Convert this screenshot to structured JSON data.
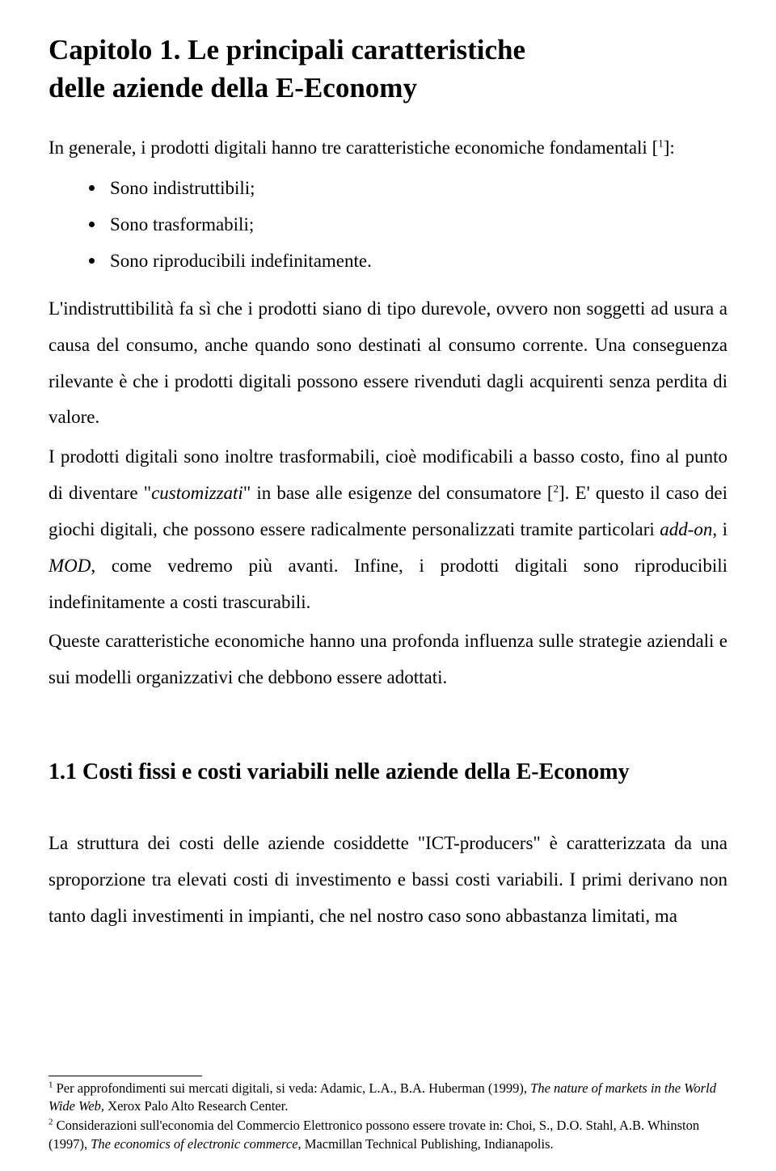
{
  "doc": {
    "title_line1": "Capitolo 1. Le principali caratteristiche",
    "title_line2": "delle aziende della E-Economy",
    "intro_before_ref": "In generale, i prodotti digitali hanno tre caratteristiche economiche fondamentali [",
    "intro_ref": "1",
    "intro_after_ref": "]:",
    "bullets": {
      "b1": "Sono indistruttibili;",
      "b2": "Sono trasformabili;",
      "b3": "Sono riproducibili indefinitamente."
    },
    "para1": "L'indistruttibilità fa sì che i prodotti siano di tipo durevole, ovvero non soggetti ad usura a causa del consumo, anche quando sono destinati al consumo corrente. Una conseguenza rilevante è che i prodotti digitali possono essere rivenduti dagli acquirenti senza perdita di valore.",
    "para2_a": "I prodotti digitali sono inoltre trasformabili, cioè modificabili a basso costo, fino al punto di diventare \"",
    "para2_em1": "customizzati",
    "para2_b": "\" in base alle esigenze del consumatore [",
    "para2_ref": "2",
    "para2_c": "]. E' questo il caso dei giochi digitali, che possono essere radicalmente personalizzati tramite particolari ",
    "para2_em2": "add-on",
    "para2_d": ", i ",
    "para2_em3": "MOD",
    "para2_e": ", come vedremo più avanti. Infine, i prodotti digitali sono riproducibili indefinitamente a costi trascurabili.",
    "para3": "Queste caratteristiche economiche hanno una profonda influenza sulle strategie aziendali e sui modelli organizzativi che debbono essere adottati.",
    "section_title": "1.1 Costi fissi e costi variabili nelle aziende della E-Economy",
    "para4": "La struttura dei costi delle aziende cosiddette \"ICT-producers\" è caratterizzata da una sproporzione tra elevati costi di investimento e bassi costi variabili. I primi derivano non tanto dagli investimenti in impianti, che nel nostro caso sono abbastanza limitati, ma",
    "footnotes": {
      "f1_sup": "1",
      "f1_a": " Per approfondimenti sui mercati digitali, si veda: Adamic, L.A., B.A. Huberman (1999), ",
      "f1_em": "The nature of markets in the World Wide Web",
      "f1_b": ", Xerox Palo Alto Research Center.",
      "f2_sup": "2",
      "f2_a": " Considerazioni sull'economia del Commercio Elettronico possono essere trovate in: Choi, S., D.O. Stahl, A.B. Whinston (1997), ",
      "f2_em": "The economics of electronic commerce",
      "f2_b": ", Macmillan Technical Publishing, Indianapolis."
    }
  }
}
